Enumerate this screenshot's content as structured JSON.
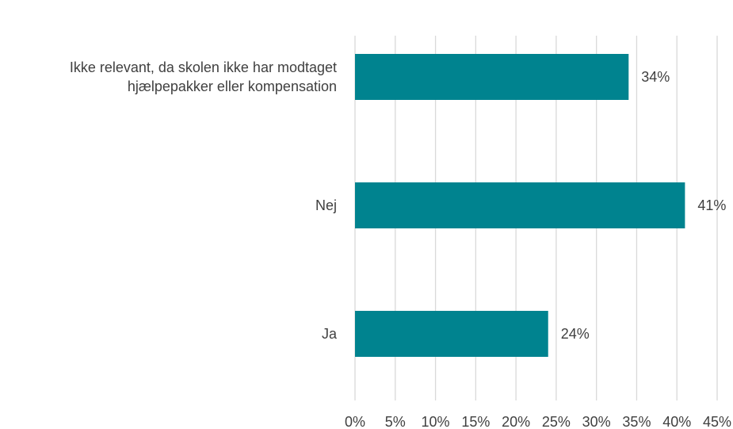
{
  "chart_data": {
    "type": "bar",
    "orientation": "horizontal",
    "title": "",
    "xlabel": "",
    "ylabel": "",
    "categories": [
      [
        "Ikke relevant, da skolen ikke har modtaget",
        "hjælpepakker eller kompensation"
      ],
      [
        "Nej"
      ],
      [
        "Ja"
      ]
    ],
    "values": [
      34,
      41,
      24
    ],
    "data_labels": [
      "34%",
      "41%",
      "24%"
    ],
    "xlim": [
      0,
      45
    ],
    "x_ticks": [
      "0%",
      "5%",
      "10%",
      "15%",
      "20%",
      "25%",
      "30%",
      "35%",
      "40%",
      "45%"
    ],
    "grid": "vertical",
    "legend": "none",
    "bar_color": "#00838F"
  }
}
